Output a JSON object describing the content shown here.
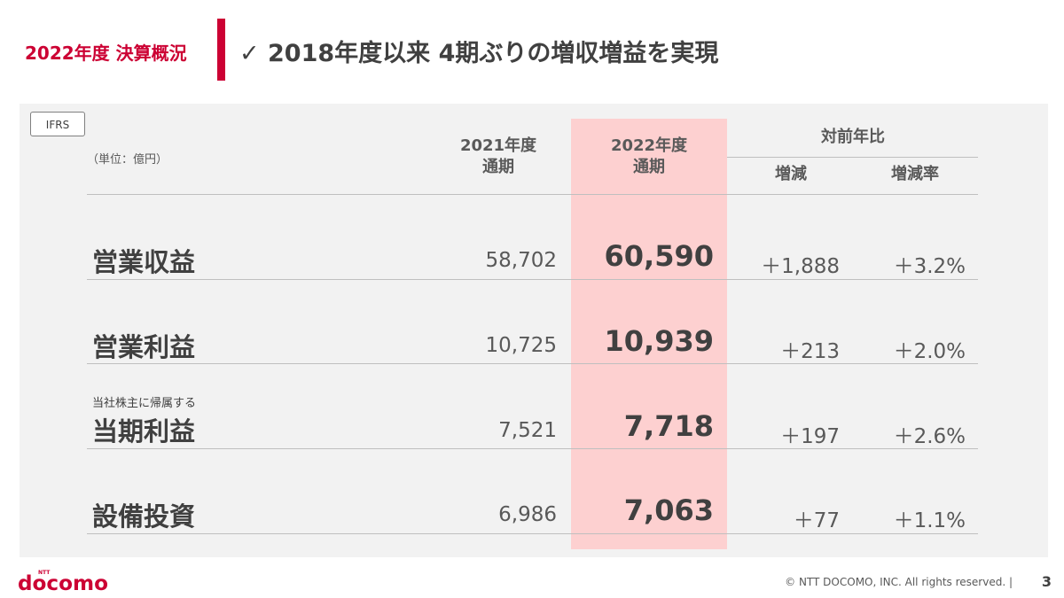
{
  "header": {
    "section_label": "2022年度 決算概況",
    "title": "✓ 2018年度以来 4期ぶりの増収増益を実現"
  },
  "table": {
    "badge": "IFRS",
    "unit": "（単位：億円）",
    "columns": {
      "prev_line1": "2021年度",
      "prev_line2": "通期",
      "cur_line1": "2022年度",
      "cur_line2": "通期",
      "yoy": "対前年比",
      "diff": "増減",
      "rate": "増減率"
    },
    "rows": [
      {
        "sublabel": "",
        "label": "営業収益",
        "prev": "58,702",
        "cur": "60,590",
        "diff": "＋1,888",
        "rate": "＋3.2%"
      },
      {
        "sublabel": "",
        "label": "営業利益",
        "prev": "10,725",
        "cur": "10,939",
        "diff": "＋213",
        "rate": "＋2.0%"
      },
      {
        "sublabel": "当社株主に帰属する",
        "label": "当期利益",
        "prev": "7,521",
        "cur": "7,718",
        "diff": "＋197",
        "rate": "＋2.6%"
      },
      {
        "sublabel": "",
        "label": "設備投資",
        "prev": "6,986",
        "cur": "7,063",
        "diff": "＋77",
        "rate": "＋1.1%"
      }
    ]
  },
  "footer": {
    "logo_small": "NTT",
    "logo_text": "docomo",
    "copyright": "© NTT DOCOMO, INC.   All rights reserved.  |",
    "page": "3"
  },
  "colors": {
    "brand_red": "#cc0033",
    "highlight": "#fdd0d0",
    "panel": "#f2f2f2"
  }
}
